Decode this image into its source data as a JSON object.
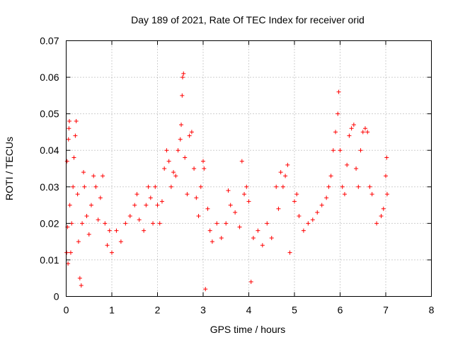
{
  "chart_data": {
    "type": "scatter",
    "title": "Day 189 of 2021, Rate Of TEC Index for receiver orid",
    "xlabel": "GPS time / hours",
    "ylabel": "ROTI / TECUs",
    "xlim": [
      0,
      8
    ],
    "ylim": [
      0,
      0.07
    ],
    "x_ticks": [
      "0",
      "1",
      "2",
      "3",
      "4",
      "5",
      "6",
      "7",
      "8"
    ],
    "y_ticks": [
      "0",
      "0.01",
      "0.02",
      "0.03",
      "0.04",
      "0.05",
      "0.06",
      "0.07"
    ],
    "grid": true,
    "marker": "+",
    "color": "#ff0000",
    "series": [
      {
        "points": [
          [
            0.01,
            0.012
          ],
          [
            0.02,
            0.037
          ],
          [
            0.03,
            0.019
          ],
          [
            0.04,
            0.009
          ],
          [
            0.05,
            0.043
          ],
          [
            0.06,
            0.046
          ],
          [
            0.07,
            0.048
          ],
          [
            0.08,
            0.025
          ],
          [
            0.1,
            0.012
          ],
          [
            0.12,
            0.02
          ],
          [
            0.15,
            0.03
          ],
          [
            0.17,
            0.038
          ],
          [
            0.2,
            0.044
          ],
          [
            0.22,
            0.048
          ],
          [
            0.25,
            0.028
          ],
          [
            0.27,
            0.015
          ],
          [
            0.3,
            0.005
          ],
          [
            0.33,
            0.003
          ],
          [
            0.35,
            0.02
          ],
          [
            0.38,
            0.034
          ],
          [
            0.4,
            0.03
          ],
          [
            0.45,
            0.022
          ],
          [
            0.5,
            0.017
          ],
          [
            0.55,
            0.025
          ],
          [
            0.6,
            0.033
          ],
          [
            0.65,
            0.03
          ],
          [
            0.7,
            0.021
          ],
          [
            0.75,
            0.027
          ],
          [
            0.8,
            0.033
          ],
          [
            0.85,
            0.02
          ],
          [
            0.9,
            0.014
          ],
          [
            0.95,
            0.018
          ],
          [
            1.0,
            0.012
          ],
          [
            1.1,
            0.018
          ],
          [
            1.2,
            0.015
          ],
          [
            1.3,
            0.02
          ],
          [
            1.4,
            0.022
          ],
          [
            1.5,
            0.025
          ],
          [
            1.55,
            0.028
          ],
          [
            1.6,
            0.021
          ],
          [
            1.7,
            0.018
          ],
          [
            1.75,
            0.025
          ],
          [
            1.8,
            0.03
          ],
          [
            1.85,
            0.027
          ],
          [
            1.9,
            0.02
          ],
          [
            1.95,
            0.03
          ],
          [
            2.0,
            0.025
          ],
          [
            2.05,
            0.02
          ],
          [
            2.1,
            0.026
          ],
          [
            2.15,
            0.035
          ],
          [
            2.2,
            0.04
          ],
          [
            2.25,
            0.037
          ],
          [
            2.3,
            0.03
          ],
          [
            2.35,
            0.034
          ],
          [
            2.4,
            0.033
          ],
          [
            2.45,
            0.04
          ],
          [
            2.5,
            0.043
          ],
          [
            2.52,
            0.047
          ],
          [
            2.54,
            0.055
          ],
          [
            2.55,
            0.06
          ],
          [
            2.57,
            0.061
          ],
          [
            2.6,
            0.038
          ],
          [
            2.65,
            0.028
          ],
          [
            2.7,
            0.044
          ],
          [
            2.75,
            0.045
          ],
          [
            2.8,
            0.035
          ],
          [
            2.85,
            0.027
          ],
          [
            2.9,
            0.022
          ],
          [
            2.95,
            0.03
          ],
          [
            3.0,
            0.037
          ],
          [
            3.02,
            0.035
          ],
          [
            3.05,
            0.002
          ],
          [
            3.1,
            0.024
          ],
          [
            3.15,
            0.018
          ],
          [
            3.2,
            0.015
          ],
          [
            3.3,
            0.02
          ],
          [
            3.4,
            0.016
          ],
          [
            3.5,
            0.02
          ],
          [
            3.55,
            0.029
          ],
          [
            3.6,
            0.025
          ],
          [
            3.7,
            0.023
          ],
          [
            3.8,
            0.019
          ],
          [
            3.85,
            0.037
          ],
          [
            3.9,
            0.028
          ],
          [
            3.95,
            0.03
          ],
          [
            4.0,
            0.026
          ],
          [
            4.05,
            0.004
          ],
          [
            4.1,
            0.016
          ],
          [
            4.2,
            0.018
          ],
          [
            4.3,
            0.014
          ],
          [
            4.4,
            0.02
          ],
          [
            4.5,
            0.016
          ],
          [
            4.6,
            0.03
          ],
          [
            4.65,
            0.024
          ],
          [
            4.7,
            0.034
          ],
          [
            4.75,
            0.03
          ],
          [
            4.8,
            0.033
          ],
          [
            4.85,
            0.036
          ],
          [
            4.9,
            0.012
          ],
          [
            5.0,
            0.026
          ],
          [
            5.05,
            0.028
          ],
          [
            5.1,
            0.022
          ],
          [
            5.2,
            0.018
          ],
          [
            5.3,
            0.02
          ],
          [
            5.4,
            0.021
          ],
          [
            5.5,
            0.023
          ],
          [
            5.6,
            0.025
          ],
          [
            5.7,
            0.027
          ],
          [
            5.75,
            0.03
          ],
          [
            5.8,
            0.033
          ],
          [
            5.85,
            0.04
          ],
          [
            5.9,
            0.045
          ],
          [
            5.95,
            0.05
          ],
          [
            5.97,
            0.056
          ],
          [
            6.0,
            0.04
          ],
          [
            6.05,
            0.03
          ],
          [
            6.1,
            0.028
          ],
          [
            6.15,
            0.036
          ],
          [
            6.2,
            0.044
          ],
          [
            6.25,
            0.046
          ],
          [
            6.3,
            0.047
          ],
          [
            6.35,
            0.035
          ],
          [
            6.4,
            0.03
          ],
          [
            6.45,
            0.04
          ],
          [
            6.5,
            0.045
          ],
          [
            6.55,
            0.046
          ],
          [
            6.6,
            0.045
          ],
          [
            6.65,
            0.03
          ],
          [
            6.7,
            0.028
          ],
          [
            6.8,
            0.02
          ],
          [
            6.9,
            0.022
          ],
          [
            6.95,
            0.024
          ],
          [
            7.0,
            0.033
          ],
          [
            7.02,
            0.038
          ],
          [
            7.03,
            0.028
          ]
        ]
      }
    ]
  }
}
